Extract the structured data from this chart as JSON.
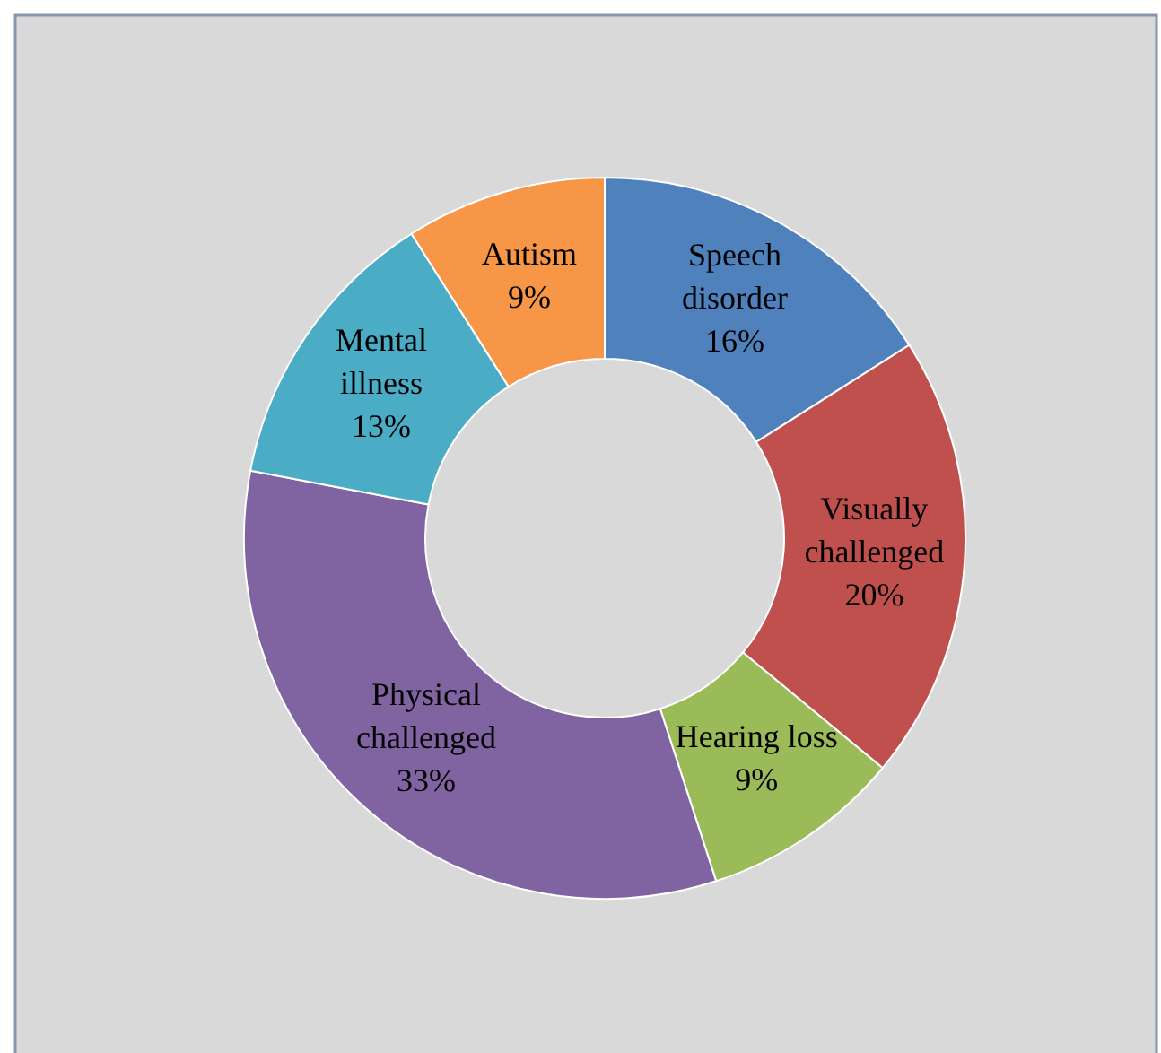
{
  "chart_data": {
    "type": "donut",
    "categories": [
      "Speech disorder",
      "Visually challenged",
      "Hearing loss",
      "Physical challenged",
      "Mental illness",
      "Autism"
    ],
    "values": [
      16,
      20,
      9,
      33,
      13,
      9
    ],
    "value_labels": [
      "16%",
      "20%",
      "9%",
      "33%",
      "13%",
      "9%"
    ],
    "colors": [
      "#4f81bd",
      "#c0504d",
      "#9bbb59",
      "#8064a2",
      "#4bacc6",
      "#f79646"
    ]
  }
}
